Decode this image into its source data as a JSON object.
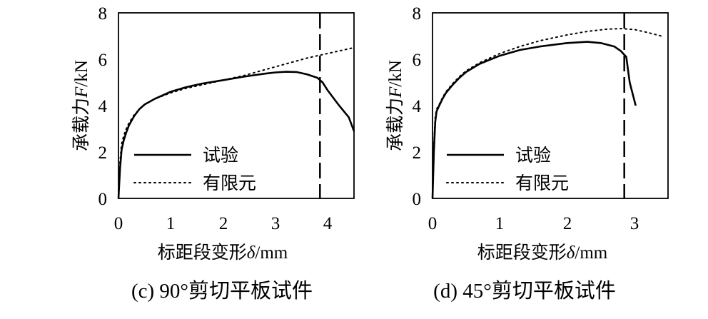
{
  "chart_data": [
    {
      "type": "line",
      "caption": "(c) 90°剪切平板试件",
      "xlabel": {
        "prefix": "标距段变形",
        "symbol": "δ",
        "suffix": "/mm"
      },
      "ylabel": {
        "prefix": "承载力",
        "symbol": "F",
        "suffix": "/kN"
      },
      "xlim": [
        0,
        4.5
      ],
      "ylim": [
        0,
        8
      ],
      "xticks": [
        "0",
        "1",
        "2",
        "3",
        "4"
      ],
      "yticks": [
        "0",
        "2",
        "4",
        "6",
        "8"
      ],
      "xtick_values": [
        0,
        1,
        2,
        3,
        4
      ],
      "ytick_values": [
        0,
        2,
        4,
        6,
        8
      ],
      "legend": {
        "placement": "bottom-left",
        "entries": [
          "试验",
          "有限元"
        ]
      },
      "vline_x": 3.85,
      "series": [
        {
          "name": "试验",
          "style": "solid",
          "x": [
            0,
            0.03,
            0.06,
            0.1,
            0.15,
            0.2,
            0.3,
            0.4,
            0.5,
            0.7,
            1.0,
            1.3,
            1.6,
            2.0,
            2.4,
            2.8,
            3.0,
            3.2,
            3.4,
            3.6,
            3.8,
            3.9,
            4.0,
            4.2,
            4.4,
            4.5
          ],
          "y": [
            0,
            1.3,
            2.1,
            2.5,
            2.85,
            3.15,
            3.55,
            3.85,
            4.05,
            4.3,
            4.6,
            4.8,
            4.95,
            5.1,
            5.25,
            5.38,
            5.43,
            5.46,
            5.45,
            5.35,
            5.2,
            5.0,
            4.65,
            4.05,
            3.5,
            2.9
          ]
        },
        {
          "name": "有限元",
          "style": "dotted",
          "x": [
            0,
            0.03,
            0.06,
            0.1,
            0.15,
            0.2,
            0.3,
            0.4,
            0.5,
            0.7,
            1.0,
            1.3,
            1.6,
            2.0,
            2.4,
            2.8,
            3.2,
            3.6,
            4.0,
            4.5
          ],
          "y": [
            0,
            1.6,
            2.35,
            2.7,
            3.0,
            3.25,
            3.6,
            3.85,
            4.05,
            4.3,
            4.55,
            4.75,
            4.9,
            5.1,
            5.3,
            5.55,
            5.8,
            6.05,
            6.25,
            6.5
          ]
        }
      ]
    },
    {
      "type": "line",
      "caption": "(d) 45°剪切平板试件",
      "xlabel": {
        "prefix": "标距段变形",
        "symbol": "δ",
        "suffix": "/mm"
      },
      "ylabel": {
        "prefix": "承载力",
        "symbol": "F",
        "suffix": "/kN"
      },
      "xlim": [
        0,
        3.5
      ],
      "ylim": [
        0,
        8
      ],
      "xticks": [
        "0",
        "1",
        "2",
        "3"
      ],
      "yticks": [
        "0",
        "2",
        "4",
        "6",
        "8"
      ],
      "xtick_values": [
        0,
        1,
        2,
        3
      ],
      "ytick_values": [
        0,
        2,
        4,
        6,
        8
      ],
      "legend": {
        "placement": "bottom-left",
        "entries": [
          "试验",
          "有限元"
        ]
      },
      "vline_x": 2.85,
      "series": [
        {
          "name": "试验",
          "style": "solid",
          "x": [
            0,
            0.02,
            0.04,
            0.06,
            0.1,
            0.15,
            0.2,
            0.3,
            0.4,
            0.5,
            0.7,
            1.0,
            1.3,
            1.6,
            2.0,
            2.3,
            2.5,
            2.7,
            2.8,
            2.88,
            2.93,
            3.02
          ],
          "y": [
            0,
            2.0,
            3.3,
            3.75,
            4.0,
            4.3,
            4.55,
            4.9,
            5.2,
            5.45,
            5.8,
            6.15,
            6.4,
            6.55,
            6.7,
            6.75,
            6.7,
            6.55,
            6.35,
            6.1,
            5.0,
            4.0
          ]
        },
        {
          "name": "有限元",
          "style": "dotted",
          "x": [
            0,
            0.02,
            0.04,
            0.06,
            0.1,
            0.15,
            0.2,
            0.3,
            0.4,
            0.5,
            0.7,
            1.0,
            1.3,
            1.6,
            2.0,
            2.3,
            2.6,
            2.8,
            3.0,
            3.2,
            3.4
          ],
          "y": [
            0,
            2.3,
            3.5,
            3.85,
            4.05,
            4.35,
            4.6,
            4.95,
            5.25,
            5.5,
            5.85,
            6.25,
            6.55,
            6.8,
            7.05,
            7.2,
            7.3,
            7.32,
            7.28,
            7.15,
            7.0
          ]
        }
      ]
    }
  ]
}
